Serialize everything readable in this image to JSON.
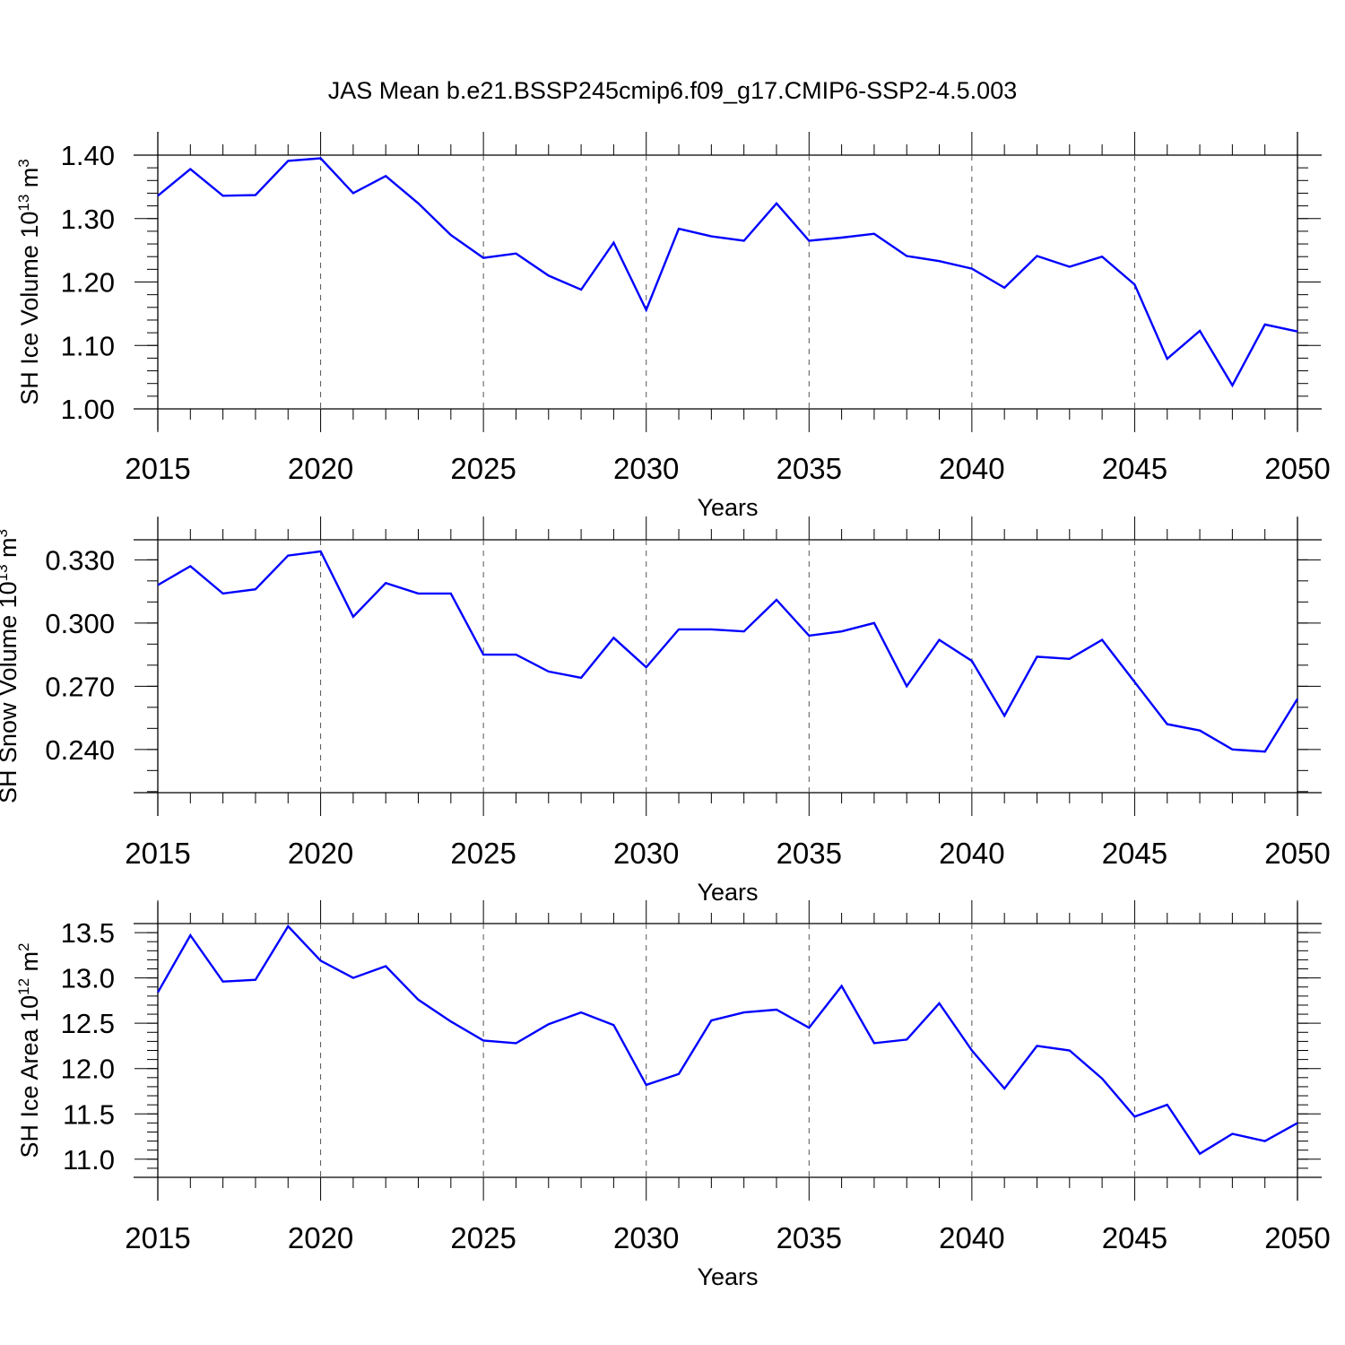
{
  "title": "JAS Mean b.e21.BSSP245cmip6.f09_g17.CMIP6-SSP2-4.5.003",
  "chart_data": [
    {
      "type": "line",
      "ylabel": "SH Ice Volume",
      "yunit_base": " 10",
      "yunit_exp1": "13",
      "yunit_mid": " m",
      "yunit_exp2": "3",
      "xlabel": "Years",
      "xlim": [
        2015,
        2050
      ],
      "ylim": [
        1.0,
        1.4
      ],
      "ytick_values": [
        1.0,
        1.1,
        1.2,
        1.3,
        1.4
      ],
      "ytick_labels": [
        "1.00",
        "1.10",
        "1.20",
        "1.30",
        "1.40"
      ],
      "yminor_step": 0.02,
      "xtick_values": [
        2015,
        2020,
        2025,
        2030,
        2035,
        2040,
        2045,
        2050
      ],
      "xtick_labels": [
        "2015",
        "2020",
        "2025",
        "2030",
        "2035",
        "2040",
        "2045",
        "2050"
      ],
      "grid": "dashed vertical lines at major x ticks",
      "color": "#0000ff",
      "series": [
        {
          "x": [
            2015,
            2016,
            2017,
            2018,
            2019,
            2020,
            2021,
            2022,
            2023,
            2024,
            2025,
            2026,
            2027,
            2028,
            2029,
            2030,
            2031,
            2032,
            2033,
            2034,
            2035,
            2036,
            2037,
            2038,
            2039,
            2040,
            2041,
            2042,
            2043,
            2044,
            2045,
            2046,
            2047,
            2048,
            2049,
            2050
          ],
          "values": [
            1.336,
            1.378,
            1.336,
            1.337,
            1.391,
            1.395,
            1.34,
            1.367,
            1.324,
            1.274,
            1.238,
            1.245,
            1.21,
            1.188,
            1.262,
            1.156,
            1.284,
            1.272,
            1.265,
            1.324,
            1.265,
            1.27,
            1.276,
            1.241,
            1.233,
            1.221,
            1.191,
            1.241,
            1.224,
            1.24,
            1.196,
            1.079,
            1.123,
            1.037,
            1.133,
            1.122
          ]
        }
      ]
    },
    {
      "type": "line",
      "ylabel": "SH Snow Volume",
      "yunit_base": " 10",
      "yunit_exp1": "13",
      "yunit_mid": " m",
      "yunit_exp2": "3",
      "xlabel": "Years",
      "xlim": [
        2015,
        2050
      ],
      "ylim": [
        0.2195,
        0.3395
      ],
      "ytick_values": [
        0.24,
        0.27,
        0.3,
        0.33
      ],
      "ytick_labels": [
        "0.240",
        "0.270",
        "0.300",
        "0.330"
      ],
      "yminor_step": 0.01,
      "xtick_values": [
        2015,
        2020,
        2025,
        2030,
        2035,
        2040,
        2045,
        2050
      ],
      "xtick_labels": [
        "2015",
        "2020",
        "2025",
        "2030",
        "2035",
        "2040",
        "2045",
        "2050"
      ],
      "grid": "dashed vertical lines at major x ticks",
      "color": "#0000ff",
      "series": [
        {
          "x": [
            2015,
            2016,
            2017,
            2018,
            2019,
            2020,
            2021,
            2022,
            2023,
            2024,
            2025,
            2026,
            2027,
            2028,
            2029,
            2030,
            2031,
            2032,
            2033,
            2034,
            2035,
            2036,
            2037,
            2038,
            2039,
            2040,
            2041,
            2042,
            2043,
            2044,
            2045,
            2046,
            2047,
            2048,
            2049,
            2050
          ],
          "values": [
            0.318,
            0.327,
            0.314,
            0.316,
            0.332,
            0.334,
            0.303,
            0.319,
            0.314,
            0.314,
            0.285,
            0.285,
            0.277,
            0.274,
            0.293,
            0.279,
            0.297,
            0.297,
            0.296,
            0.311,
            0.294,
            0.296,
            0.3,
            0.27,
            0.292,
            0.282,
            0.256,
            0.284,
            0.283,
            0.292,
            0.272,
            0.252,
            0.249,
            0.24,
            0.239,
            0.264
          ]
        }
      ]
    },
    {
      "type": "line",
      "ylabel": "SH Ice Area",
      "yunit_base": " 10",
      "yunit_exp1": "12",
      "yunit_mid": " m",
      "yunit_exp2": "2",
      "xlabel": "Years",
      "xlim": [
        2015,
        2050
      ],
      "ylim": [
        10.8,
        13.6
      ],
      "ytick_values": [
        11.0,
        11.5,
        12.0,
        12.5,
        13.0,
        13.5
      ],
      "ytick_labels": [
        "11.0",
        "11.5",
        "12.0",
        "12.5",
        "13.0",
        "13.5"
      ],
      "yminor_step": 0.1,
      "xtick_values": [
        2015,
        2020,
        2025,
        2030,
        2035,
        2040,
        2045,
        2050
      ],
      "xtick_labels": [
        "2015",
        "2020",
        "2025",
        "2030",
        "2035",
        "2040",
        "2045",
        "2050"
      ],
      "grid": "dashed vertical lines at major x ticks",
      "color": "#0000ff",
      "series": [
        {
          "x": [
            2015,
            2016,
            2017,
            2018,
            2019,
            2020,
            2021,
            2022,
            2023,
            2024,
            2025,
            2026,
            2027,
            2028,
            2029,
            2030,
            2031,
            2032,
            2033,
            2034,
            2035,
            2036,
            2037,
            2038,
            2039,
            2040,
            2041,
            2042,
            2043,
            2044,
            2045,
            2046,
            2047,
            2048,
            2049,
            2050
          ],
          "values": [
            12.84,
            13.47,
            12.96,
            12.98,
            13.57,
            13.19,
            13.0,
            13.13,
            12.76,
            12.52,
            12.31,
            12.28,
            12.49,
            12.62,
            12.48,
            11.82,
            11.94,
            12.53,
            12.62,
            12.65,
            12.45,
            12.91,
            12.28,
            12.32,
            12.72,
            12.2,
            11.78,
            12.25,
            12.2,
            11.89,
            11.47,
            11.6,
            11.06,
            11.28,
            11.2,
            11.4
          ]
        }
      ]
    }
  ]
}
